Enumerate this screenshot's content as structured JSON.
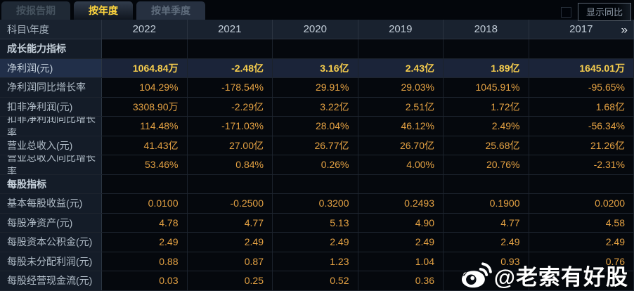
{
  "tabs": [
    {
      "label": "按报告期",
      "active": false
    },
    {
      "label": "按年度",
      "active": true
    },
    {
      "label": "按单季度",
      "active": false
    }
  ],
  "controls": {
    "show_yoy_label": "显示同比",
    "checkbox_checked": false
  },
  "table": {
    "corner_label": "科目\\年度",
    "years": [
      "2022",
      "2021",
      "2020",
      "2019",
      "2018",
      "2017"
    ],
    "more_icon": "»",
    "rows": [
      {
        "type": "section",
        "label": "成长能力指标"
      },
      {
        "type": "data",
        "highlighted": true,
        "label": "净利润(元)",
        "values": [
          "1064.84万",
          "-2.48亿",
          "3.16亿",
          "2.43亿",
          "1.89亿",
          "1645.01万"
        ]
      },
      {
        "type": "data",
        "label": "净利润同比增长率",
        "values": [
          "104.29%",
          "-178.54%",
          "29.91%",
          "29.03%",
          "1045.91%",
          "-95.65%"
        ]
      },
      {
        "type": "data",
        "label": "扣非净利润(元)",
        "values": [
          "3308.90万",
          "-2.29亿",
          "3.22亿",
          "2.51亿",
          "1.72亿",
          "1.68亿"
        ]
      },
      {
        "type": "data",
        "label": "扣非净利润同比增长率",
        "values": [
          "114.48%",
          "-171.03%",
          "28.04%",
          "46.12%",
          "2.49%",
          "-56.34%"
        ]
      },
      {
        "type": "data",
        "label": "营业总收入(元)",
        "values": [
          "41.43亿",
          "27.00亿",
          "26.77亿",
          "26.70亿",
          "25.68亿",
          "21.26亿"
        ]
      },
      {
        "type": "data",
        "label": "营业总收入同比增长率",
        "values": [
          "53.46%",
          "0.84%",
          "0.26%",
          "4.00%",
          "20.76%",
          "-2.31%"
        ]
      },
      {
        "type": "section",
        "label": "每股指标"
      },
      {
        "type": "data",
        "label": "基本每股收益(元)",
        "values": [
          "0.0100",
          "-0.2500",
          "0.3200",
          "0.2493",
          "0.1900",
          "0.0200"
        ]
      },
      {
        "type": "data",
        "label": "每股净资产(元)",
        "values": [
          "4.78",
          "4.77",
          "5.13",
          "4.90",
          "4.77",
          "4.58"
        ]
      },
      {
        "type": "data",
        "label": "每股资本公积金(元)",
        "values": [
          "2.49",
          "2.49",
          "2.49",
          "2.49",
          "2.49",
          "2.49"
        ]
      },
      {
        "type": "data",
        "label": "每股未分配利润(元)",
        "values": [
          "0.88",
          "0.87",
          "1.23",
          "1.04",
          "0.93",
          "0.76"
        ]
      },
      {
        "type": "data",
        "label": "每股经营现金流(元)",
        "values": [
          "0.03",
          "0.25",
          "0.52",
          "0.36",
          "",
          ""
        ]
      }
    ]
  },
  "watermark": {
    "text": "@老索有好股"
  },
  "colors": {
    "active_tab_text": "#ffd63e",
    "value_orange": "#e5a243",
    "highlight_gold": "#f7ce4d",
    "header_bg": "#19222f",
    "label_cell_bg": "#141c28",
    "highlight_row_bg": "#1b2439",
    "watermark_white": "#ffffff"
  }
}
